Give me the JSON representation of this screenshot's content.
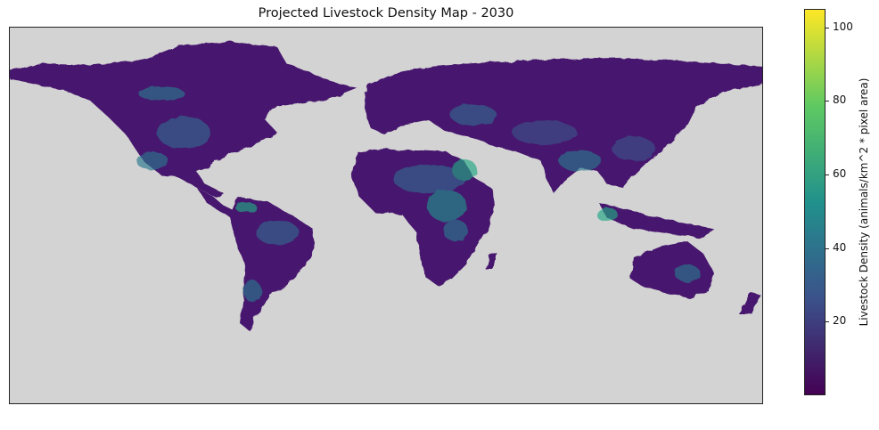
{
  "title": "Projected Livestock Density Map - 2030",
  "colorbar": {
    "label": "Livestock Density (animals/km^2 * pixel area)",
    "min": 0,
    "max": 105,
    "ticks": [
      20,
      40,
      60,
      80,
      100
    ],
    "colormap": "viridis",
    "colors": [
      "#440154",
      "#3b528b",
      "#21918c",
      "#5ec962",
      "#fde725"
    ]
  },
  "map": {
    "projection": "equirectangular",
    "background_color": "#d3d3d3",
    "land_base_color": "#46186e"
  }
}
